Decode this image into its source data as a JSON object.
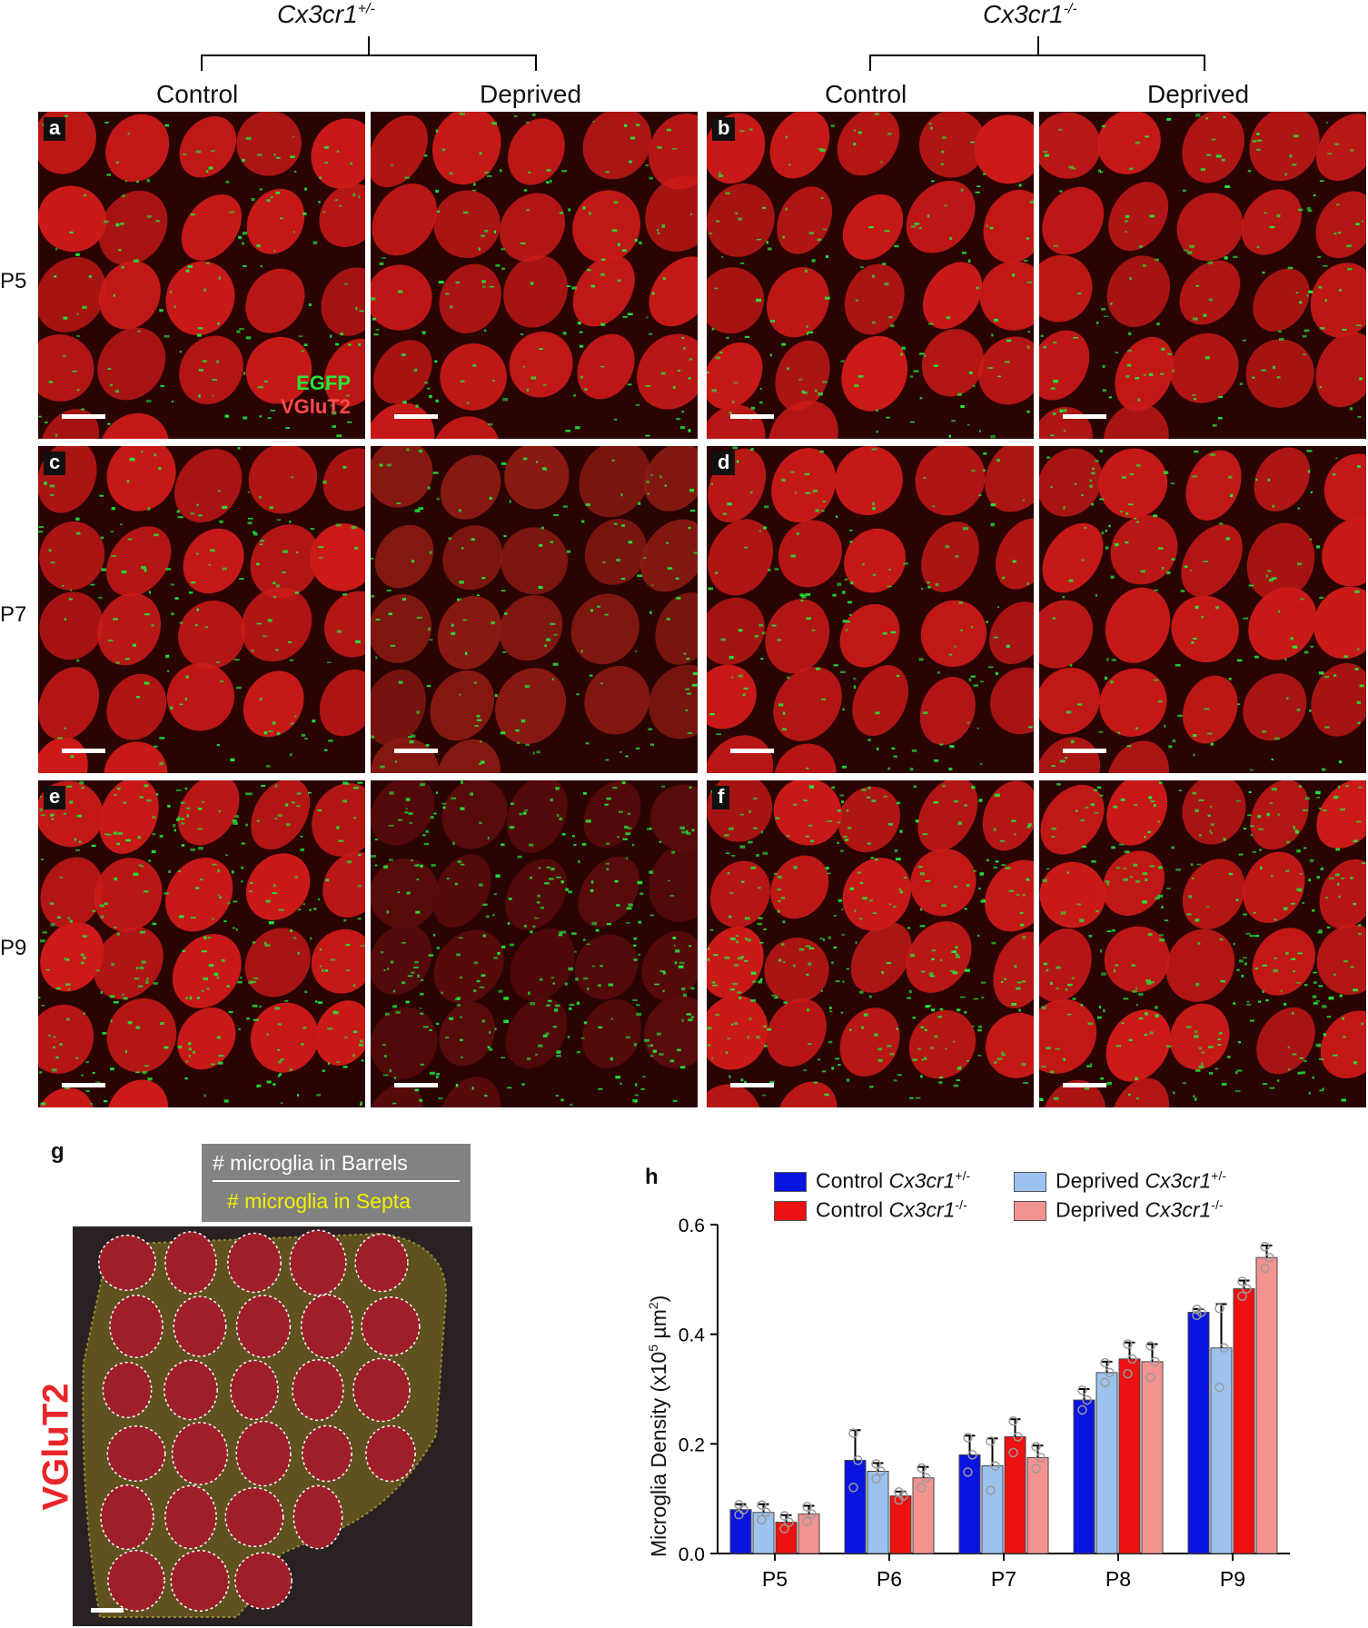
{
  "header": {
    "genotype_het": "Cx3cr1",
    "genotype_het_sup": "+/-",
    "genotype_ko": "Cx3cr1",
    "genotype_ko_sup": "-/-",
    "cond_control": "Control",
    "cond_deprived": "Deprived"
  },
  "rows": [
    {
      "label": "P5"
    },
    {
      "label": "P7"
    },
    {
      "label": "P9"
    }
  ],
  "panel_letters": [
    "a",
    "b",
    "c",
    "d",
    "e",
    "f"
  ],
  "channel_legend": {
    "egfp": "EGFP",
    "vglut2": "VGluT2"
  },
  "colors": {
    "egfp": "#22e83a",
    "vglut2": "#ff4b4b",
    "control_het": "#0a14e0",
    "deprived_het": "#9cc3ef",
    "control_ko": "#ee1111",
    "deprived_ko": "#f39390"
  },
  "panel_g": {
    "letter": "g",
    "box_line1": "# microglia in Barrels",
    "box_line2": "# microglia in Septa",
    "side_label": "VGluT2"
  },
  "chart_data": {
    "type": "bar",
    "panel_letter": "h",
    "categories": [
      "P5",
      "P6",
      "P7",
      "P8",
      "P9"
    ],
    "ylabel": "Microglia Density (x10",
    "ylabel_sup": "5",
    "ylabel_unit": " µm",
    "ylabel_unit_sup": "2",
    "ylabel_close": ")",
    "ylim": [
      0,
      0.6
    ],
    "yticks": [
      "0.0",
      "0.2",
      "0.4",
      "0.6"
    ],
    "legend_position": "top",
    "series": [
      {
        "name": "Control",
        "name_gene": "Cx3cr1",
        "name_sup": "+/-",
        "color": "#0a14e0",
        "values": [
          0.08,
          0.17,
          0.18,
          0.28,
          0.44
        ],
        "err": [
          0.01,
          0.055,
          0.035,
          0.02,
          0.006
        ]
      },
      {
        "name": "Deprived",
        "name_gene": "Cx3cr1",
        "name_sup": "+/-",
        "color": "#9cc3ef",
        "values": [
          0.075,
          0.15,
          0.16,
          0.33,
          0.375
        ],
        "err": [
          0.015,
          0.015,
          0.05,
          0.02,
          0.08
        ]
      },
      {
        "name": "Control",
        "name_gene": "Cx3cr1",
        "name_sup": "-/-",
        "color": "#ee1111",
        "values": [
          0.057,
          0.105,
          0.213,
          0.355,
          0.483
        ],
        "err": [
          0.013,
          0.008,
          0.032,
          0.03,
          0.015
        ]
      },
      {
        "name": "Deprived",
        "name_gene": "Cx3cr1",
        "name_sup": "-/-",
        "color": "#f39390",
        "values": [
          0.072,
          0.138,
          0.175,
          0.35,
          0.54
        ],
        "err": [
          0.015,
          0.02,
          0.022,
          0.032,
          0.022
        ]
      }
    ]
  }
}
